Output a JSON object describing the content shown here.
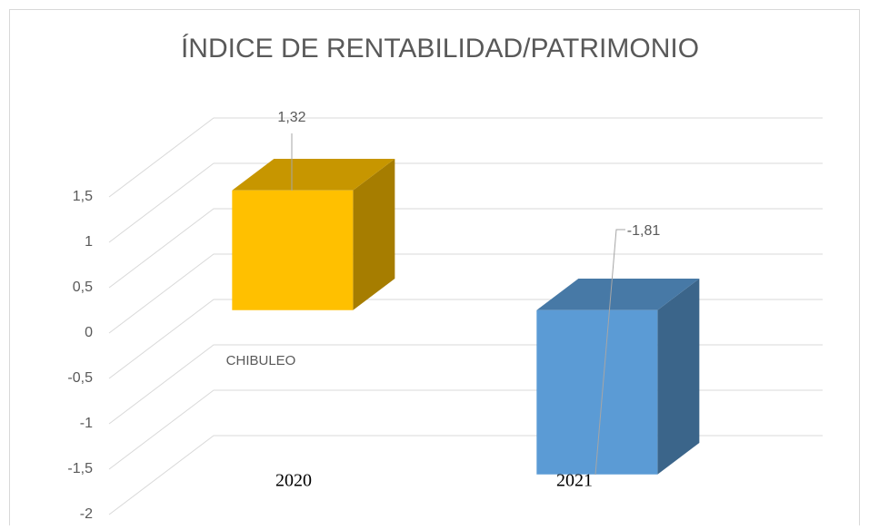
{
  "chart_data": {
    "type": "bar3d",
    "title": "ÍNDICE DE RENTABILIDAD/PATRIMONIO",
    "categories": [
      "2020",
      "2021"
    ],
    "series": [
      {
        "name": "CHIBULEO",
        "colors": [
          "#FFC000",
          "#5B9BD5"
        ],
        "values": [
          1.32,
          -1.81
        ],
        "value_labels": [
          "1,32",
          "-1,81"
        ]
      }
    ],
    "ylim": [
      -2,
      1.5
    ],
    "yticks": [
      -2,
      {
        "value": -1.5,
        "label": "-1,5"
      },
      -1,
      {
        "value": -0.5,
        "label": "-0,5"
      },
      0,
      {
        "value": 0.5,
        "label": "0,5"
      },
      1,
      {
        "value": 1.5,
        "label": "1,5"
      }
    ],
    "grid": true
  }
}
